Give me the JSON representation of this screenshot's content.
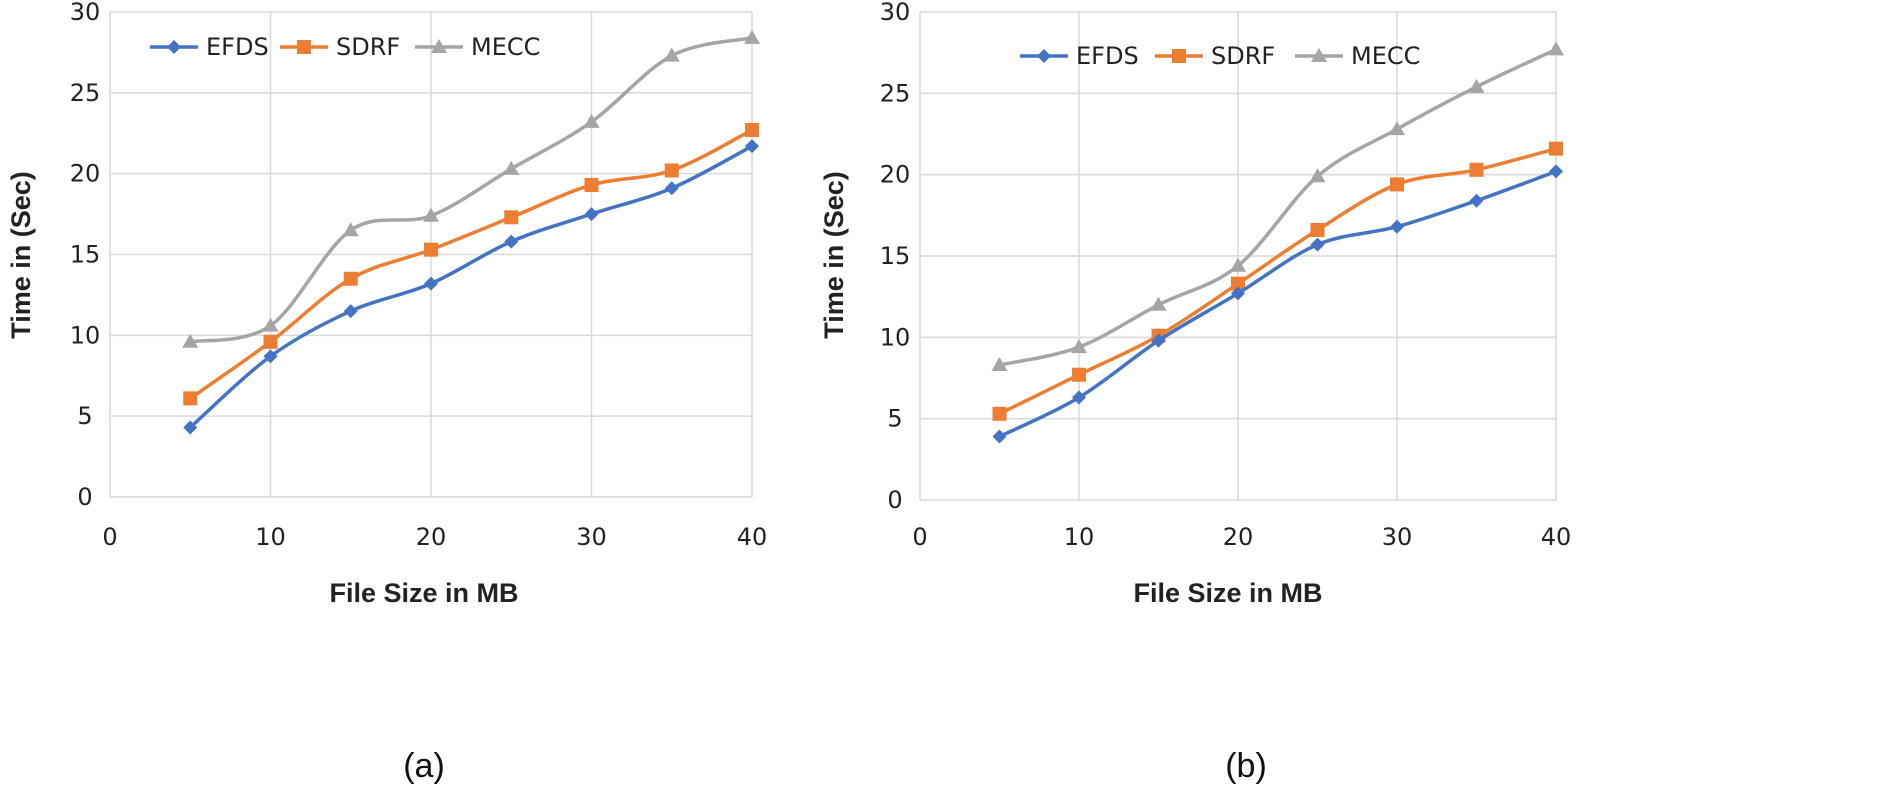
{
  "chart_data": [
    {
      "type": "line",
      "caption": "(a)",
      "xlabel": "File Size in MB",
      "ylabel": "Time in (Sec)",
      "xlim": [
        0,
        40
      ],
      "ylim": [
        0,
        30
      ],
      "x_ticks": [
        "0",
        "10",
        "20",
        "30",
        "40"
      ],
      "y_ticks": [
        "0",
        "5",
        "10",
        "15",
        "20",
        "25",
        "30"
      ],
      "grid": true,
      "legend_position": "top-left",
      "x": [
        5,
        10,
        15,
        20,
        25,
        30,
        35,
        40
      ],
      "series": [
        {
          "name": "EFDS",
          "color": "#4472c4",
          "marker": "diamond",
          "values": [
            4.3,
            8.7,
            11.5,
            13.2,
            15.8,
            17.5,
            19.1,
            21.7
          ]
        },
        {
          "name": "SDRF",
          "color": "#ed7d31",
          "marker": "square",
          "values": [
            6.1,
            9.6,
            13.5,
            15.3,
            17.3,
            19.3,
            20.2,
            22.7
          ]
        },
        {
          "name": "MECC",
          "color": "#a5a5a5",
          "marker": "triangle",
          "values": [
            9.6,
            10.6,
            16.5,
            17.4,
            20.3,
            23.2,
            27.3,
            28.4
          ]
        }
      ]
    },
    {
      "type": "line",
      "caption": "(b)",
      "xlabel": "File Size in MB",
      "ylabel": "Time in (Sec)",
      "xlim": [
        0,
        40
      ],
      "ylim": [
        0,
        30
      ],
      "x_ticks": [
        "0",
        "10",
        "20",
        "30",
        "40"
      ],
      "y_ticks": [
        "0",
        "5",
        "10",
        "15",
        "20",
        "25",
        "30"
      ],
      "grid": true,
      "legend_position": "top-left",
      "x": [
        5,
        10,
        15,
        20,
        25,
        30,
        35,
        40
      ],
      "series": [
        {
          "name": "EFDS",
          "color": "#4472c4",
          "marker": "diamond",
          "values": [
            3.9,
            6.3,
            9.8,
            12.7,
            15.7,
            16.8,
            18.4,
            20.2
          ]
        },
        {
          "name": "SDRF",
          "color": "#ed7d31",
          "marker": "square",
          "values": [
            5.3,
            7.7,
            10.1,
            13.3,
            16.6,
            19.4,
            20.3,
            21.6
          ]
        },
        {
          "name": "MECC",
          "color": "#a5a5a5",
          "marker": "triangle",
          "values": [
            8.3,
            9.4,
            12.0,
            14.4,
            19.9,
            22.8,
            25.4,
            27.7
          ]
        }
      ]
    }
  ]
}
